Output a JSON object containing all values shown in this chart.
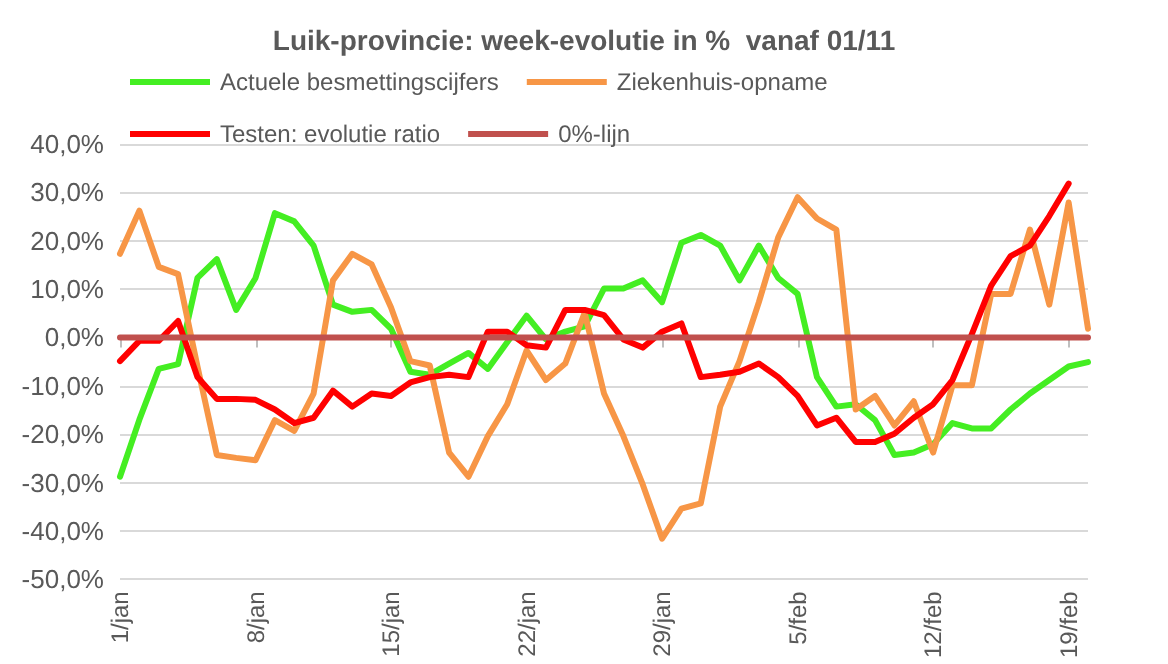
{
  "chart_data": {
    "type": "line",
    "title": "Luik-provincie: week-evolutie in %  vanaf 01/11",
    "categories": [
      "1/jan",
      null,
      null,
      null,
      null,
      null,
      null,
      "8/jan",
      null,
      null,
      null,
      null,
      null,
      null,
      "15/jan",
      null,
      null,
      null,
      null,
      null,
      null,
      "22/jan",
      null,
      null,
      null,
      null,
      null,
      null,
      "29/jan",
      null,
      null,
      null,
      null,
      null,
      null,
      "5/feb",
      null,
      null,
      null,
      null,
      null,
      null,
      "12/feb",
      null,
      null,
      null,
      null,
      null,
      null,
      "19/feb",
      null
    ],
    "series": [
      {
        "name": "Actuele besmettingscijfers",
        "color": "#44ee22",
        "values": [
          -28.8,
          -17,
          -6.5,
          -5.5,
          12.3,
          16.2,
          5.7,
          12.3,
          25.7,
          24,
          19,
          6.8,
          5.3,
          5.7,
          1.8,
          -7.1,
          -7.7,
          -5.4,
          -3.2,
          -6.5,
          -1,
          4.5,
          -0.4,
          1.2,
          2.3,
          10.1,
          10.1,
          11.8,
          7.3,
          19.6,
          21.2,
          19,
          11.8,
          19,
          12.3,
          9,
          -8.2,
          -14.3,
          -13.8,
          -17.1,
          -24.3,
          -23.8,
          -22.1,
          -17.7,
          -18.8,
          -18.8,
          -14.9,
          -11.6,
          -8.8,
          -6,
          -5.1
        ]
      },
      {
        "name": "Ziekenhuis-opname",
        "color": "#f79646",
        "values": [
          17.3,
          26.2,
          14.6,
          13.1,
          -6,
          -24.3,
          -24.9,
          -25.4,
          -17.1,
          -19.3,
          -11.6,
          11.8,
          17.3,
          15.1,
          6.2,
          -4.9,
          -5.8,
          -23.8,
          -28.8,
          -20.4,
          -13.8,
          -2.7,
          -8.8,
          -5.4,
          5.1,
          -11.6,
          -20.4,
          -30.4,
          -41.6,
          -35.4,
          -34.3,
          -14.3,
          -4.9,
          7.3,
          20.7,
          29,
          24.6,
          22.3,
          -14.9,
          -12.1,
          -18.2,
          -13.2,
          -23.8,
          -9.9,
          -9.9,
          9,
          9,
          22.3,
          6.8,
          27.9,
          1.8
        ]
      },
      {
        "name": "Testen: evolutie ratio",
        "color": "#ff0000",
        "values": [
          -4.9,
          -0.7,
          -0.7,
          3.4,
          -8.2,
          -12.7,
          -12.7,
          -12.9,
          -14.9,
          -17.7,
          -16.6,
          -11,
          -14.3,
          -11.6,
          -12.1,
          -9.3,
          -8.2,
          -7.7,
          -8.2,
          1.2,
          1.2,
          -1.6,
          -2.1,
          5.7,
          5.7,
          4.6,
          -0.4,
          -2.1,
          1.2,
          2.9,
          -8.2,
          -7.7,
          -7.1,
          -5.4,
          -8.2,
          -12.1,
          -18.2,
          -16.6,
          -21.6,
          -21.6,
          -19.9,
          -16.6,
          -13.8,
          -8.8,
          0.7,
          10.7,
          16.8,
          19,
          25.1,
          31.8,
          null
        ]
      },
      {
        "name": "0%-lijn",
        "color": "#c0504d",
        "values": [
          0,
          0,
          0,
          0,
          0,
          0,
          0,
          0,
          0,
          0,
          0,
          0,
          0,
          0,
          0,
          0,
          0,
          0,
          0,
          0,
          0,
          0,
          0,
          0,
          0,
          0,
          0,
          0,
          0,
          0,
          0,
          0,
          0,
          0,
          0,
          0,
          0,
          0,
          0,
          0,
          0,
          0,
          0,
          0,
          0,
          0,
          0,
          0,
          0,
          0,
          0
        ]
      }
    ],
    "ylim": [
      -50,
      40
    ],
    "yticks": [
      {
        "value": -50,
        "label": "-50,0%"
      },
      {
        "value": -40,
        "label": "-40,0%"
      },
      {
        "value": -30,
        "label": "-30,0%"
      },
      {
        "value": -20,
        "label": "-20,0%"
      },
      {
        "value": -10,
        "label": "-10,0%"
      },
      {
        "value": 0,
        "label": "0,0%"
      },
      {
        "value": 10,
        "label": "10,0%"
      },
      {
        "value": 20,
        "label": "20,0%"
      },
      {
        "value": 30,
        "label": "30,0%"
      },
      {
        "value": 40,
        "label": "40,0%"
      }
    ],
    "grid": "y",
    "legend": "top left",
    "marker": "none",
    "line_style": "solid"
  }
}
